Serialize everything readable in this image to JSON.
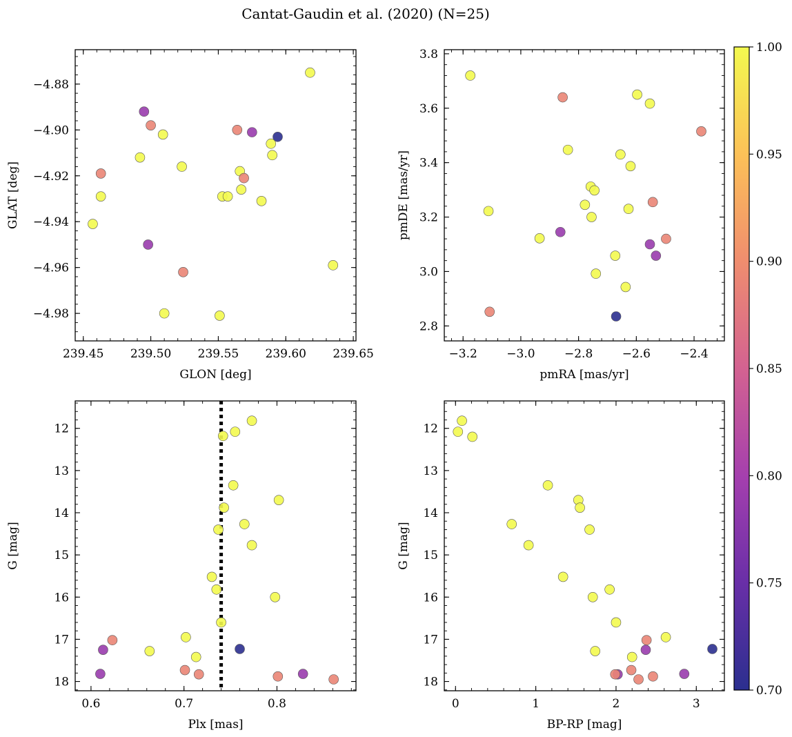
{
  "title": "Cantat-Gaudin et al. (2020) (N=25)",
  "colorbar": {
    "vmin": 0.7,
    "vmax": 1.0,
    "ticks": [
      "0.70",
      "0.75",
      "0.80",
      "0.85",
      "0.90",
      "0.95",
      "1.00"
    ],
    "colormap": "plasma"
  },
  "chart_data": [
    {
      "type": "scatter",
      "xlabel": "GLON [deg]",
      "ylabel": "GLAT [deg]",
      "xlim": [
        239.444,
        239.652
      ],
      "ylim": [
        -4.992,
        -4.865
      ],
      "yinvert": false,
      "xticks": [
        239.45,
        239.5,
        239.55,
        239.6,
        239.65
      ],
      "xtick_labels": [
        "239.45",
        "239.50",
        "239.55",
        "239.60",
        "239.65"
      ],
      "yticks": [
        -4.98,
        -4.96,
        -4.94,
        -4.92,
        -4.9,
        -4.88
      ],
      "ytick_labels": [
        "−4.98",
        "−4.96",
        "−4.94",
        "−4.92",
        "−4.90",
        "−4.88"
      ],
      "points": [
        {
          "x": 239.618,
          "y": -4.875,
          "c": 1.0
        },
        {
          "x": 239.495,
          "y": -4.892,
          "c": 0.79
        },
        {
          "x": 239.5,
          "y": -4.898,
          "c": 0.89
        },
        {
          "x": 239.509,
          "y": -4.902,
          "c": 1.0
        },
        {
          "x": 239.564,
          "y": -4.9,
          "c": 0.89
        },
        {
          "x": 239.575,
          "y": -4.901,
          "c": 0.79
        },
        {
          "x": 239.594,
          "y": -4.903,
          "c": 0.7
        },
        {
          "x": 239.589,
          "y": -4.906,
          "c": 1.0
        },
        {
          "x": 239.59,
          "y": -4.911,
          "c": 1.0
        },
        {
          "x": 239.492,
          "y": -4.912,
          "c": 1.0
        },
        {
          "x": 239.523,
          "y": -4.916,
          "c": 1.0
        },
        {
          "x": 239.566,
          "y": -4.918,
          "c": 1.0
        },
        {
          "x": 239.463,
          "y": -4.919,
          "c": 0.89
        },
        {
          "x": 239.569,
          "y": -4.921,
          "c": 0.89
        },
        {
          "x": 239.567,
          "y": -4.926,
          "c": 1.0
        },
        {
          "x": 239.463,
          "y": -4.929,
          "c": 1.0
        },
        {
          "x": 239.553,
          "y": -4.929,
          "c": 1.0
        },
        {
          "x": 239.557,
          "y": -4.929,
          "c": 1.0
        },
        {
          "x": 239.582,
          "y": -4.931,
          "c": 1.0
        },
        {
          "x": 239.457,
          "y": -4.941,
          "c": 1.0
        },
        {
          "x": 239.498,
          "y": -4.95,
          "c": 0.79
        },
        {
          "x": 239.524,
          "y": -4.962,
          "c": 0.89
        },
        {
          "x": 239.635,
          "y": -4.959,
          "c": 1.0
        },
        {
          "x": 239.51,
          "y": -4.98,
          "c": 1.0
        },
        {
          "x": 239.551,
          "y": -4.981,
          "c": 1.0
        }
      ]
    },
    {
      "type": "scatter",
      "xlabel": "pmRA [mas/yr]",
      "ylabel": "pmDE [mas/yr]",
      "xlim": [
        -3.265,
        -2.295
      ],
      "ylim": [
        2.745,
        3.815
      ],
      "yinvert": false,
      "xticks": [
        -3.2,
        -3.0,
        -2.8,
        -2.6,
        -2.4
      ],
      "xtick_labels": [
        "−3.2",
        "−3.0",
        "−2.8",
        "−2.6",
        "−2.4"
      ],
      "yticks": [
        2.8,
        3.0,
        3.2,
        3.4,
        3.6,
        3.8
      ],
      "ytick_labels": [
        "2.8",
        "3.0",
        "3.2",
        "3.4",
        "3.6",
        "3.8"
      ],
      "points": [
        {
          "x": -3.175,
          "y": 3.72,
          "c": 1.0
        },
        {
          "x": -2.855,
          "y": 3.64,
          "c": 0.89
        },
        {
          "x": -2.597,
          "y": 3.65,
          "c": 1.0
        },
        {
          "x": -2.553,
          "y": 3.617,
          "c": 1.0
        },
        {
          "x": -2.375,
          "y": 3.515,
          "c": 0.89
        },
        {
          "x": -2.837,
          "y": 3.447,
          "c": 1.0
        },
        {
          "x": -2.655,
          "y": 3.43,
          "c": 1.0
        },
        {
          "x": -2.62,
          "y": 3.387,
          "c": 1.0
        },
        {
          "x": -2.758,
          "y": 3.312,
          "c": 1.0
        },
        {
          "x": -2.745,
          "y": 3.298,
          "c": 1.0
        },
        {
          "x": -2.778,
          "y": 3.245,
          "c": 1.0
        },
        {
          "x": -2.543,
          "y": 3.255,
          "c": 0.89
        },
        {
          "x": -2.627,
          "y": 3.23,
          "c": 1.0
        },
        {
          "x": -3.112,
          "y": 3.222,
          "c": 1.0
        },
        {
          "x": -2.755,
          "y": 3.2,
          "c": 1.0
        },
        {
          "x": -2.863,
          "y": 3.145,
          "c": 0.79
        },
        {
          "x": -2.935,
          "y": 3.122,
          "c": 1.0
        },
        {
          "x": -2.497,
          "y": 3.12,
          "c": 0.89
        },
        {
          "x": -2.553,
          "y": 3.1,
          "c": 0.79
        },
        {
          "x": -2.673,
          "y": 3.058,
          "c": 1.0
        },
        {
          "x": -2.532,
          "y": 3.058,
          "c": 0.79
        },
        {
          "x": -2.74,
          "y": 2.992,
          "c": 1.0
        },
        {
          "x": -2.637,
          "y": 2.943,
          "c": 1.0
        },
        {
          "x": -3.108,
          "y": 2.852,
          "c": 0.89
        },
        {
          "x": -2.67,
          "y": 2.835,
          "c": 0.7
        }
      ]
    },
    {
      "type": "scatter",
      "xlabel": "Plx [mas]",
      "ylabel": "G [mag]",
      "xlim": [
        0.583,
        0.885
      ],
      "ylim": [
        11.35,
        18.22
      ],
      "yinvert": true,
      "vline": {
        "x": 0.74,
        "style": "dotted"
      },
      "xticks": [
        0.6,
        0.7,
        0.8
      ],
      "xtick_labels": [
        "0.6",
        "0.7",
        "0.8"
      ],
      "yticks": [
        12,
        13,
        14,
        15,
        16,
        17,
        18
      ],
      "ytick_labels": [
        "12",
        "13",
        "14",
        "15",
        "16",
        "17",
        "18"
      ],
      "points": [
        {
          "x": 0.773,
          "y": 11.82,
          "c": 1.0
        },
        {
          "x": 0.755,
          "y": 12.08,
          "c": 1.0
        },
        {
          "x": 0.742,
          "y": 12.18,
          "c": 1.0
        },
        {
          "x": 0.753,
          "y": 13.35,
          "c": 1.0
        },
        {
          "x": 0.802,
          "y": 13.7,
          "c": 1.0
        },
        {
          "x": 0.743,
          "y": 13.88,
          "c": 1.0
        },
        {
          "x": 0.765,
          "y": 14.27,
          "c": 1.0
        },
        {
          "x": 0.737,
          "y": 14.4,
          "c": 1.0
        },
        {
          "x": 0.773,
          "y": 14.77,
          "c": 1.0
        },
        {
          "x": 0.73,
          "y": 15.52,
          "c": 1.0
        },
        {
          "x": 0.735,
          "y": 15.82,
          "c": 1.0
        },
        {
          "x": 0.798,
          "y": 16.0,
          "c": 1.0
        },
        {
          "x": 0.74,
          "y": 16.6,
          "c": 1.0
        },
        {
          "x": 0.702,
          "y": 16.95,
          "c": 1.0
        },
        {
          "x": 0.623,
          "y": 17.02,
          "c": 0.89
        },
        {
          "x": 0.613,
          "y": 17.25,
          "c": 0.79
        },
        {
          "x": 0.76,
          "y": 17.23,
          "c": 0.7
        },
        {
          "x": 0.663,
          "y": 17.28,
          "c": 1.0
        },
        {
          "x": 0.713,
          "y": 17.42,
          "c": 1.0
        },
        {
          "x": 0.701,
          "y": 17.73,
          "c": 0.89
        },
        {
          "x": 0.716,
          "y": 17.83,
          "c": 0.89
        },
        {
          "x": 0.61,
          "y": 17.82,
          "c": 0.79
        },
        {
          "x": 0.828,
          "y": 17.82,
          "c": 0.79
        },
        {
          "x": 0.801,
          "y": 17.88,
          "c": 0.89
        },
        {
          "x": 0.861,
          "y": 17.95,
          "c": 0.89
        }
      ]
    },
    {
      "type": "scatter",
      "xlabel": "BP-RP [mag]",
      "ylabel": "G [mag]",
      "xlim": [
        -0.14,
        3.35
      ],
      "ylim": [
        11.35,
        18.22
      ],
      "yinvert": true,
      "xticks": [
        0,
        1,
        2,
        3
      ],
      "xtick_labels": [
        "0",
        "1",
        "2",
        "3"
      ],
      "yticks": [
        12,
        13,
        14,
        15,
        16,
        17,
        18
      ],
      "ytick_labels": [
        "12",
        "13",
        "14",
        "15",
        "16",
        "17",
        "18"
      ],
      "points": [
        {
          "x": 0.08,
          "y": 11.82,
          "c": 1.0
        },
        {
          "x": 0.03,
          "y": 12.08,
          "c": 1.0
        },
        {
          "x": 0.21,
          "y": 12.2,
          "c": 1.0
        },
        {
          "x": 1.15,
          "y": 13.35,
          "c": 1.0
        },
        {
          "x": 1.53,
          "y": 13.7,
          "c": 1.0
        },
        {
          "x": 1.55,
          "y": 13.88,
          "c": 1.0
        },
        {
          "x": 0.7,
          "y": 14.27,
          "c": 1.0
        },
        {
          "x": 1.67,
          "y": 14.4,
          "c": 1.0
        },
        {
          "x": 0.91,
          "y": 14.77,
          "c": 1.0
        },
        {
          "x": 1.34,
          "y": 15.52,
          "c": 1.0
        },
        {
          "x": 1.92,
          "y": 15.82,
          "c": 1.0
        },
        {
          "x": 1.71,
          "y": 16.0,
          "c": 1.0
        },
        {
          "x": 2.0,
          "y": 16.6,
          "c": 1.0
        },
        {
          "x": 2.62,
          "y": 16.95,
          "c": 1.0
        },
        {
          "x": 2.38,
          "y": 17.02,
          "c": 0.89
        },
        {
          "x": 2.37,
          "y": 17.25,
          "c": 0.79
        },
        {
          "x": 3.2,
          "y": 17.23,
          "c": 0.7
        },
        {
          "x": 1.74,
          "y": 17.28,
          "c": 1.0
        },
        {
          "x": 2.2,
          "y": 17.42,
          "c": 1.0
        },
        {
          "x": 2.19,
          "y": 17.73,
          "c": 0.89
        },
        {
          "x": 2.02,
          "y": 17.83,
          "c": 0.79
        },
        {
          "x": 1.99,
          "y": 17.83,
          "c": 0.89
        },
        {
          "x": 2.85,
          "y": 17.82,
          "c": 0.79
        },
        {
          "x": 2.46,
          "y": 17.88,
          "c": 0.89
        },
        {
          "x": 2.28,
          "y": 17.95,
          "c": 0.89
        }
      ]
    }
  ]
}
